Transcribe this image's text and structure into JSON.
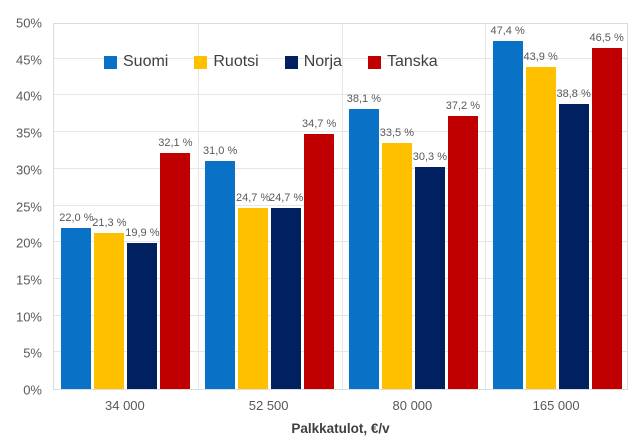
{
  "chart_data": {
    "type": "bar",
    "title": "",
    "xlabel": "Palkkatulot, €/v",
    "ylabel": "",
    "ylim": [
      0,
      50
    ],
    "ytick_step": 5,
    "ytick_labels": [
      "0%",
      "5%",
      "10%",
      "15%",
      "20%",
      "25%",
      "30%",
      "35%",
      "40%",
      "45%",
      "50%"
    ],
    "categories": [
      "34 000",
      "52 500",
      "80 000",
      "165 000"
    ],
    "series": [
      {
        "name": "Suomi",
        "color": "#0a72c6",
        "values": [
          22.0,
          31.0,
          38.1,
          47.4
        ],
        "labels": [
          "22,0 %",
          "31,0 %",
          "38,1 %",
          "47,4 %"
        ]
      },
      {
        "name": "Ruotsi",
        "color": "#ffc000",
        "values": [
          21.3,
          24.7,
          33.5,
          43.9
        ],
        "labels": [
          "21,3 %",
          "24,7 %",
          "33,5 %",
          "43,9 %"
        ]
      },
      {
        "name": "Norja",
        "color": "#002060",
        "values": [
          19.9,
          24.7,
          30.3,
          38.8
        ],
        "labels": [
          "19,9 %",
          "24,7 %",
          "30,3 %",
          "38,8 %"
        ]
      },
      {
        "name": "Tanska",
        "color": "#c00000",
        "values": [
          32.1,
          34.7,
          37.2,
          46.5
        ],
        "labels": [
          "32,1 %",
          "34,7 %",
          "37,2 %",
          "46,5 %"
        ]
      }
    ],
    "legend_position": "top-inside",
    "grid": true,
    "gridline_color": "#e6e6e6",
    "tick_label_color": "#595959",
    "data_label_color": "#595959"
  }
}
